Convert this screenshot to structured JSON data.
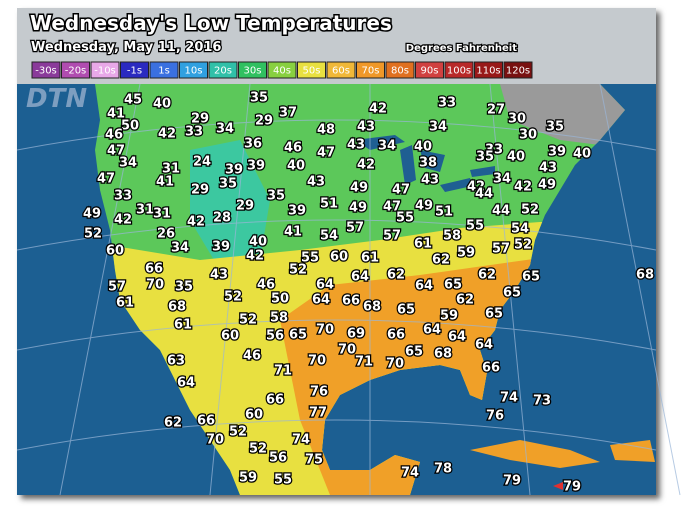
{
  "header": {
    "title": "Wednesday's Low Temperatures",
    "date": "Wednesday, May 11, 2016",
    "units": "Degrees Fahrenheit"
  },
  "legend": [
    {
      "label": "-30s",
      "color": "#8a3a9a"
    },
    {
      "label": "-20s",
      "color": "#b04cb0"
    },
    {
      "label": "-10s",
      "color": "#e8a8e8"
    },
    {
      "label": "-1s",
      "color": "#2a2ac0"
    },
    {
      "label": "1s",
      "color": "#3a70e0"
    },
    {
      "label": "10s",
      "color": "#30a0e0"
    },
    {
      "label": "20s",
      "color": "#30c0a8"
    },
    {
      "label": "30s",
      "color": "#30c060"
    },
    {
      "label": "40s",
      "color": "#88d040"
    },
    {
      "label": "50s",
      "color": "#e8e040"
    },
    {
      "label": "60s",
      "color": "#f0b838"
    },
    {
      "label": "70s",
      "color": "#f09828"
    },
    {
      "label": "80s",
      "color": "#e07020"
    },
    {
      "label": "90s",
      "color": "#d04040"
    },
    {
      "label": "100s",
      "color": "#b82828"
    },
    {
      "label": "110s",
      "color": "#981818"
    },
    {
      "label": "120s",
      "color": "#781010"
    }
  ],
  "watermark": "DTN",
  "temperatures": [
    45,
    40,
    35,
    42,
    33,
    27,
    30,
    41,
    29,
    29,
    37,
    50,
    34,
    48,
    43,
    34,
    30,
    35,
    46,
    42,
    33,
    36,
    46,
    47,
    43,
    34,
    40,
    33,
    35,
    40,
    39,
    40,
    47,
    34,
    31,
    24,
    39,
    39,
    40,
    42,
    38,
    43,
    47,
    41,
    35,
    43,
    43,
    34,
    42,
    49,
    33,
    29,
    35,
    49,
    47,
    42,
    44,
    49,
    31,
    31,
    29,
    28,
    42,
    39,
    51,
    49,
    47,
    49,
    51,
    44,
    52,
    42,
    55,
    57,
    55,
    52,
    26,
    41,
    54,
    57,
    58,
    54,
    60,
    34,
    39,
    40,
    42,
    61,
    57,
    52,
    55,
    60,
    61,
    62,
    59,
    66,
    43,
    52,
    64,
    62,
    62,
    65,
    68,
    57,
    70,
    35,
    46,
    64,
    64,
    65,
    61,
    68,
    52,
    50,
    64,
    66,
    68,
    65,
    62,
    65,
    61,
    52,
    58,
    70,
    69,
    66,
    64,
    59,
    64,
    65,
    60,
    46,
    56,
    65,
    63,
    70,
    70,
    71,
    65,
    68,
    70,
    64,
    64,
    71,
    76,
    66,
    62,
    66,
    60,
    66,
    77,
    74,
    73,
    76,
    70,
    52,
    52,
    74,
    56,
    75,
    59,
    55,
    74,
    78,
    79,
    79
  ]
}
